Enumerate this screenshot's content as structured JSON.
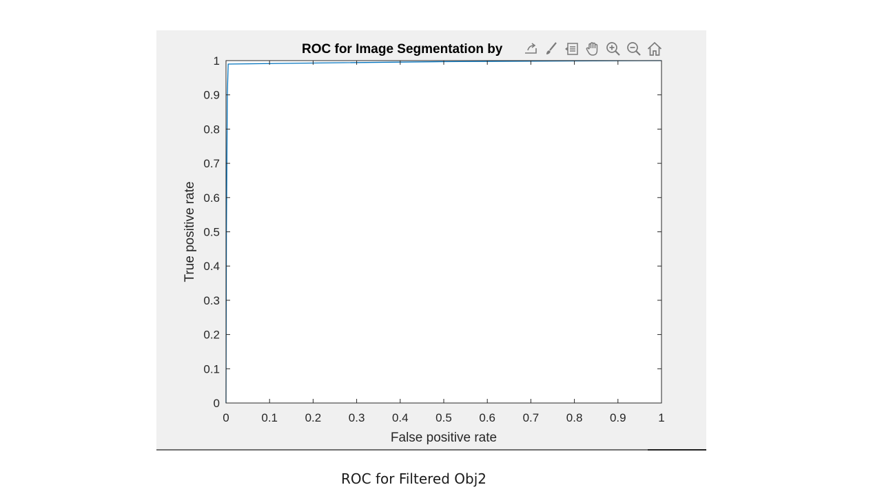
{
  "caption": "ROC for Filtered Obj2",
  "toolbar": {
    "buttons": [
      {
        "name": "export-icon"
      },
      {
        "name": "brush-icon"
      },
      {
        "name": "data-tips-icon"
      },
      {
        "name": "pan-hand-icon"
      },
      {
        "name": "zoom-in-icon"
      },
      {
        "name": "zoom-out-icon"
      },
      {
        "name": "home-icon"
      }
    ],
    "icon_color": "#7a7a7a"
  },
  "chart_data": {
    "type": "line",
    "title": "ROC for Image Segmentation by",
    "xlabel": "False positive rate",
    "ylabel": "True positive rate",
    "xlim": [
      0,
      1
    ],
    "ylim": [
      0,
      1
    ],
    "xticks": [
      "0",
      "0.1",
      "0.2",
      "0.3",
      "0.4",
      "0.5",
      "0.6",
      "0.7",
      "0.8",
      "0.9",
      "1"
    ],
    "yticks": [
      "0",
      "0.1",
      "0.2",
      "0.3",
      "0.4",
      "0.5",
      "0.6",
      "0.7",
      "0.8",
      "0.9",
      "1"
    ],
    "grid": false,
    "series": [
      {
        "color": "#0072bd",
        "x": [
          0,
          0.001,
          0.003,
          0.005,
          0.2,
          0.5,
          0.8,
          1.0
        ],
        "y": [
          0,
          0.5,
          0.9,
          0.99,
          0.993,
          0.997,
          0.999,
          1.0
        ]
      }
    ]
  }
}
